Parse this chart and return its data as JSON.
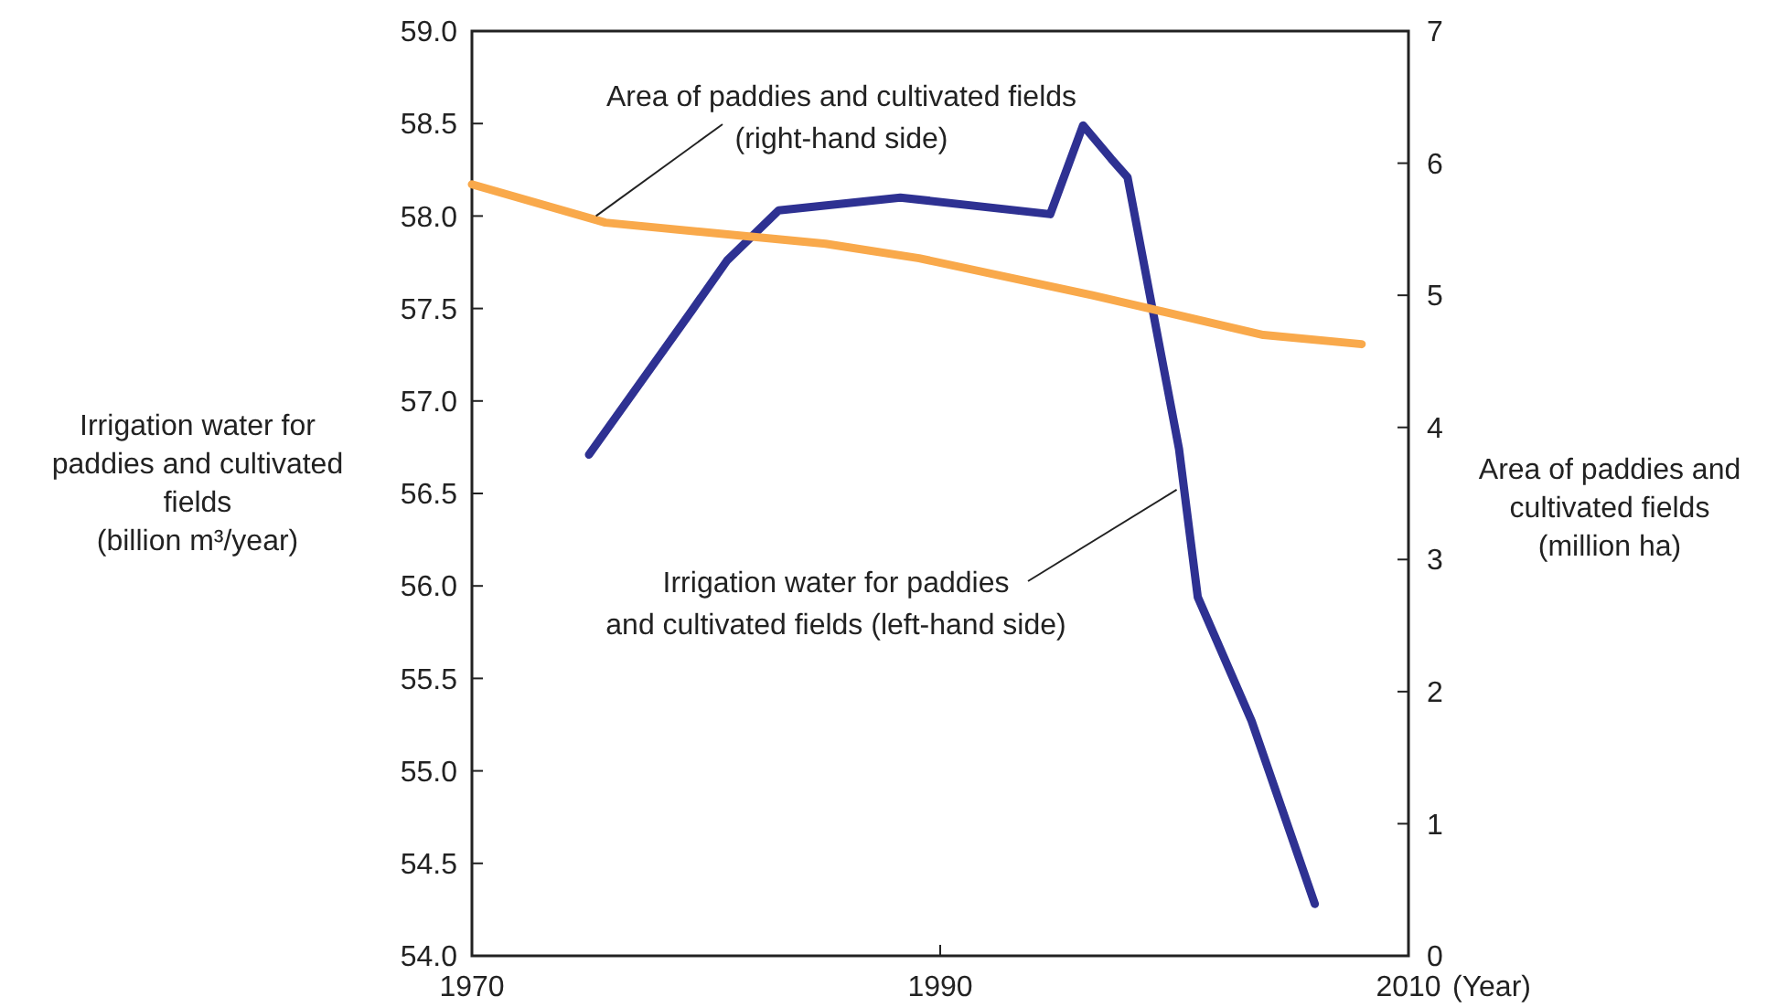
{
  "chart_data": {
    "type": "line",
    "xlabel": "(Year)",
    "ylabel": "Irrigation water for\npaddies and cultivated\nfields\n(billion m³/year)",
    "y2label": "Area of paddies and\ncultivated fields\n(million ha)",
    "xlim": [
      1970,
      2010
    ],
    "xticks": [
      1970,
      1990,
      2010
    ],
    "ylim": [
      54.0,
      59.0
    ],
    "yticks": [
      {
        "value": 54,
        "label": "54.0"
      },
      {
        "value": 54.5,
        "label": "54.5"
      },
      {
        "value": 55,
        "label": "55.0"
      },
      {
        "value": 55.5,
        "label": "55.5"
      },
      {
        "value": 56,
        "label": "56.0"
      },
      {
        "value": 56.5,
        "label": "56.5"
      },
      {
        "value": 57,
        "label": "57.0"
      },
      {
        "value": 57.5,
        "label": "57.5"
      },
      {
        "value": 58,
        "label": "58.0"
      },
      {
        "value": 58.5,
        "label": "58.5"
      },
      {
        "value": 59,
        "label": "59.0"
      }
    ],
    "y2lim": [
      0,
      7
    ],
    "y2ticks": [
      0,
      1,
      2,
      3,
      4,
      5,
      6,
      7
    ],
    "grid": false,
    "series": [
      {
        "color": "#2e3192",
        "x": [
          1975.0,
          1979.4,
          1980.9,
          1983.1,
          1988.3,
          1994.7,
          1996.1,
          1997.3,
          1998.0,
          2000.2,
          2001.0,
          2003.3,
          2006.0
        ],
        "values": [
          56.71,
          57.49,
          57.76,
          58.03,
          58.1,
          58.01,
          58.49,
          58.31,
          58.21,
          56.74,
          55.94,
          55.27,
          54.28
        ]
      },
      {
        "color": "#f9a94b",
        "axis": "y2",
        "x": [
          1970,
          1975.7,
          1985.1,
          1989.1,
          1996.5,
          2003.8,
          2008.0
        ],
        "values": [
          5.84,
          5.55,
          5.39,
          5.28,
          5.0,
          4.7,
          4.63
        ]
      }
    ],
    "annotations": [
      {
        "text": "Area of paddies and cultivated fields\n(right-hand side)",
        "x": 1975.3,
        "y": 58.0
      },
      {
        "text": "Irrigation water for paddies\nand cultivated fields (left-hand side)",
        "x": 2000.1,
        "y": 56.52
      }
    ]
  }
}
